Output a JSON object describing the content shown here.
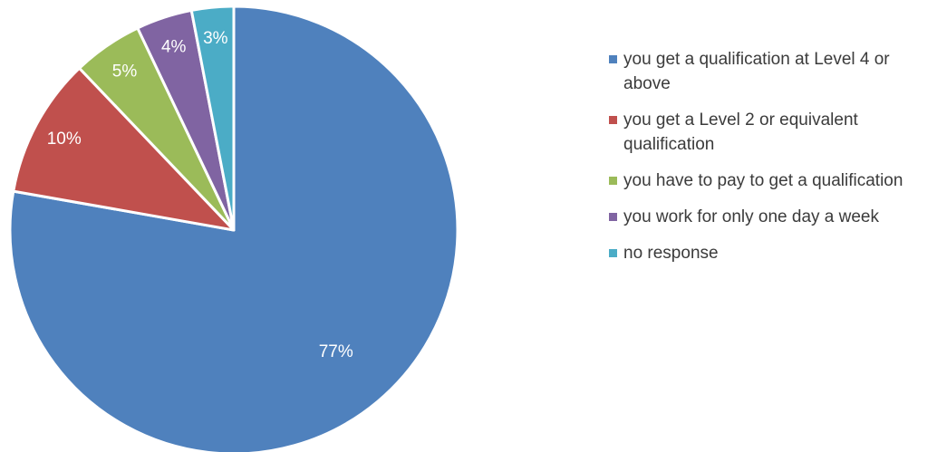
{
  "chart_data": {
    "type": "pie",
    "title": "",
    "categories": [
      "you get a qualification at Level 4 or above",
      "you get a Level 2 or equivalent qualification",
      "you have to pay to get a qualification",
      "you work for only one day a week",
      "no response"
    ],
    "values": [
      77,
      10,
      5,
      4,
      3
    ],
    "data_labels": [
      "77%",
      "10%",
      "5%",
      "4%",
      "3%"
    ],
    "colors": [
      "#4f81bd",
      "#c0504d",
      "#9bbb59",
      "#8064a2",
      "#4bacc6"
    ],
    "start_angle_deg": 0,
    "direction": "clockwise",
    "legend_position": "right"
  }
}
